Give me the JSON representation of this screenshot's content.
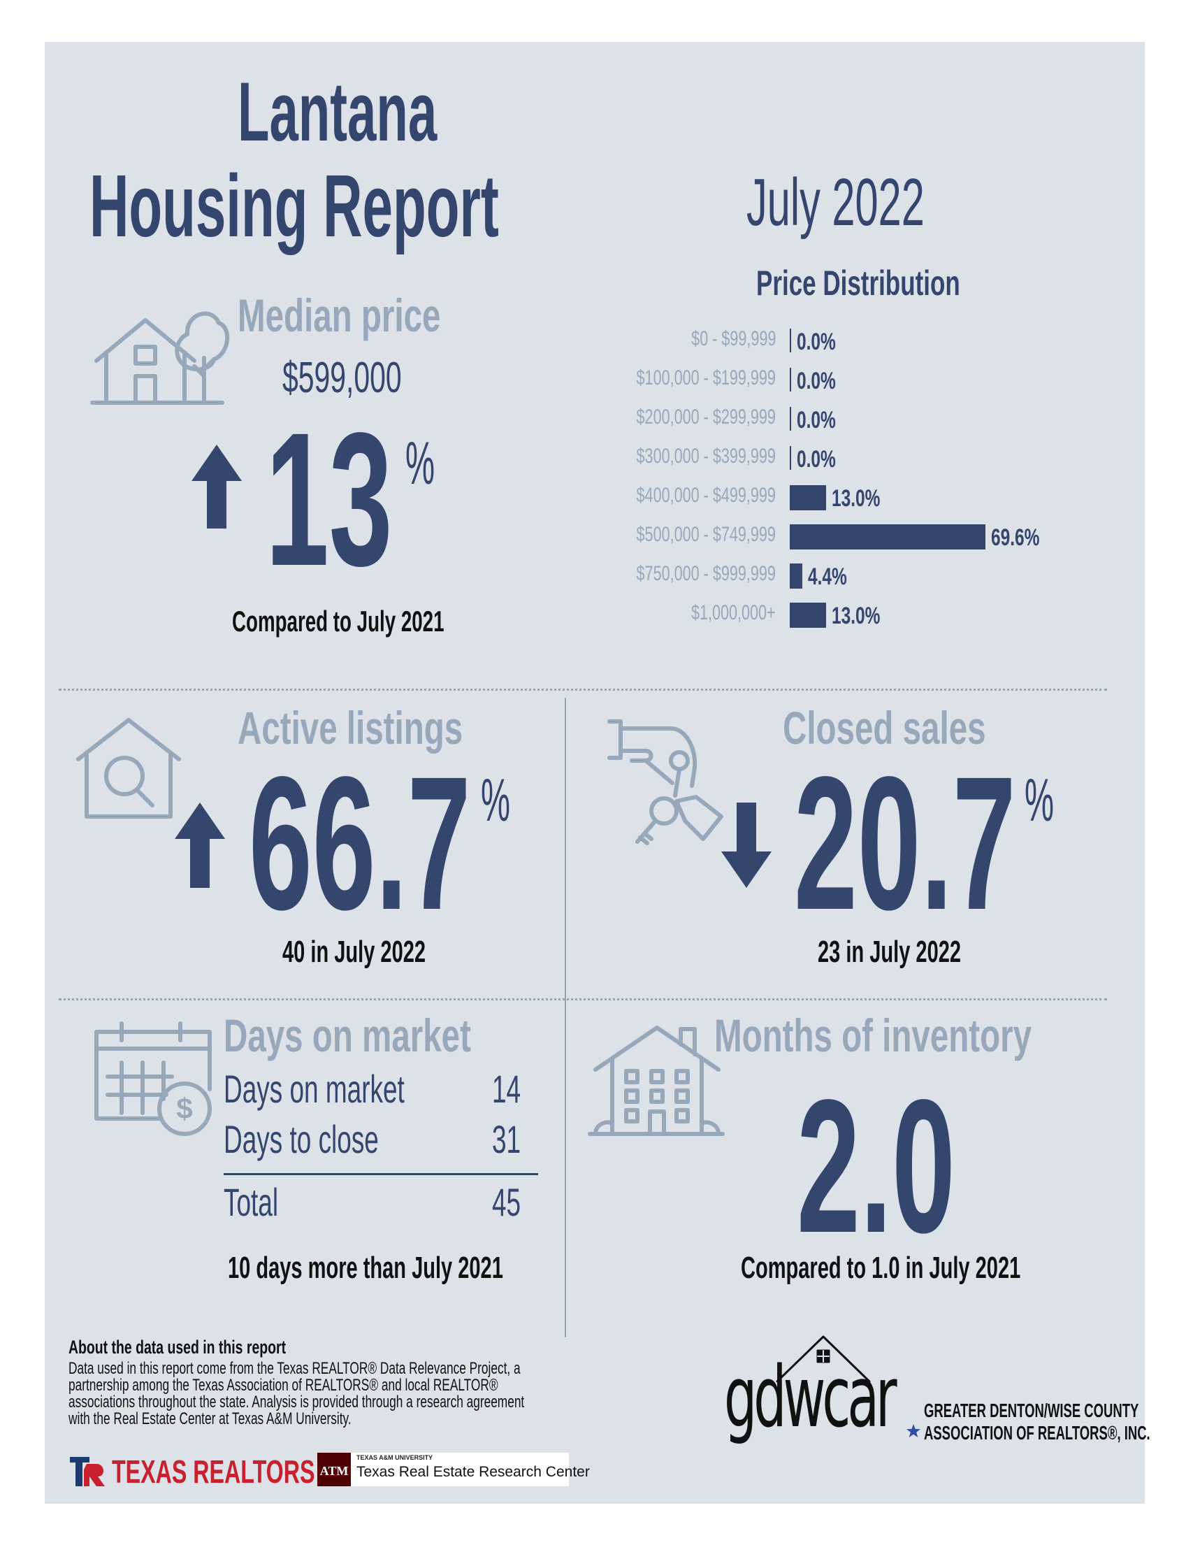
{
  "header": {
    "city": "Lantana",
    "title": "Housing Report",
    "period": "July 2022"
  },
  "median_price": {
    "label": "Median price",
    "value": "$599,000",
    "change": "13",
    "unit": "%",
    "direction": "up",
    "caption": "Compared to July 2021"
  },
  "price_distribution": {
    "title": "Price Distribution",
    "chart_data": {
      "type": "bar",
      "title": "Price Distribution",
      "categories": [
        "$0 - $99,999",
        "$100,000 - $199,999",
        "$200,000 - $299,999",
        "$300,000 - $399,999",
        "$400,000 - $499,999",
        "$500,000 - $749,999",
        "$750,000 - $999,999",
        "$1,000,000+"
      ],
      "values": [
        0.0,
        0.0,
        0.0,
        0.0,
        13.0,
        69.6,
        4.4,
        13.0
      ],
      "value_labels": [
        "0.0%",
        "0.0%",
        "0.0%",
        "0.0%",
        "13.0%",
        "69.6%",
        "4.4%",
        "13.0%"
      ],
      "orientation": "horizontal",
      "color": "#35466e"
    }
  },
  "active_listings": {
    "label": "Active listings",
    "change": "66.7",
    "unit": "%",
    "direction": "up",
    "caption": "40 in July 2022"
  },
  "closed_sales": {
    "label": "Closed sales",
    "change": "20.7",
    "unit": "%",
    "direction": "down",
    "caption": "23 in July 2022"
  },
  "days_on_market": {
    "label": "Days on market",
    "rows": [
      {
        "label": "Days on market",
        "value": "14"
      },
      {
        "label": "Days to close",
        "value": "31"
      }
    ],
    "total_label": "Total",
    "total_value": "45",
    "caption": "10 days more than July 2021"
  },
  "months_inventory": {
    "label": "Months of inventory",
    "value": "2.0",
    "caption": "Compared to 1.0 in July 2021"
  },
  "footer": {
    "about_title": "About the data used in this report",
    "about_text": "Data used in this report come from the Texas REALTOR® Data Relevance Project, a partnership among the Texas Association of REALTORS® and local REALTOR® associations throughout the state. Analysis is provided through a research agreement with the Real Estate Center at Texas A&M University.",
    "texas_realtors": "TEXAS REALTORS",
    "tamu_small": "TEXAS A&M UNIVERSITY",
    "tamu_center": "Texas Real Estate Research Center",
    "gdwcar_logo": "gdwcar",
    "gdwcar_line1": "GREATER DENTON/WISE COUNTY",
    "gdwcar_line2": "ASSOCIATION OF REALTORS®, INC."
  },
  "colors": {
    "navy": "#35466e",
    "gray_blue": "#98a8bb",
    "panel": "#dde1e8",
    "texas_red": "#c8202f",
    "tamu_maroon": "#500000"
  },
  "icons": [
    "house-tree-icon",
    "house-search-icon",
    "hand-keys-icon",
    "calendar-dollar-icon",
    "apartment-building-icon",
    "up-arrow-icon",
    "down-arrow-icon",
    "star-icon"
  ]
}
